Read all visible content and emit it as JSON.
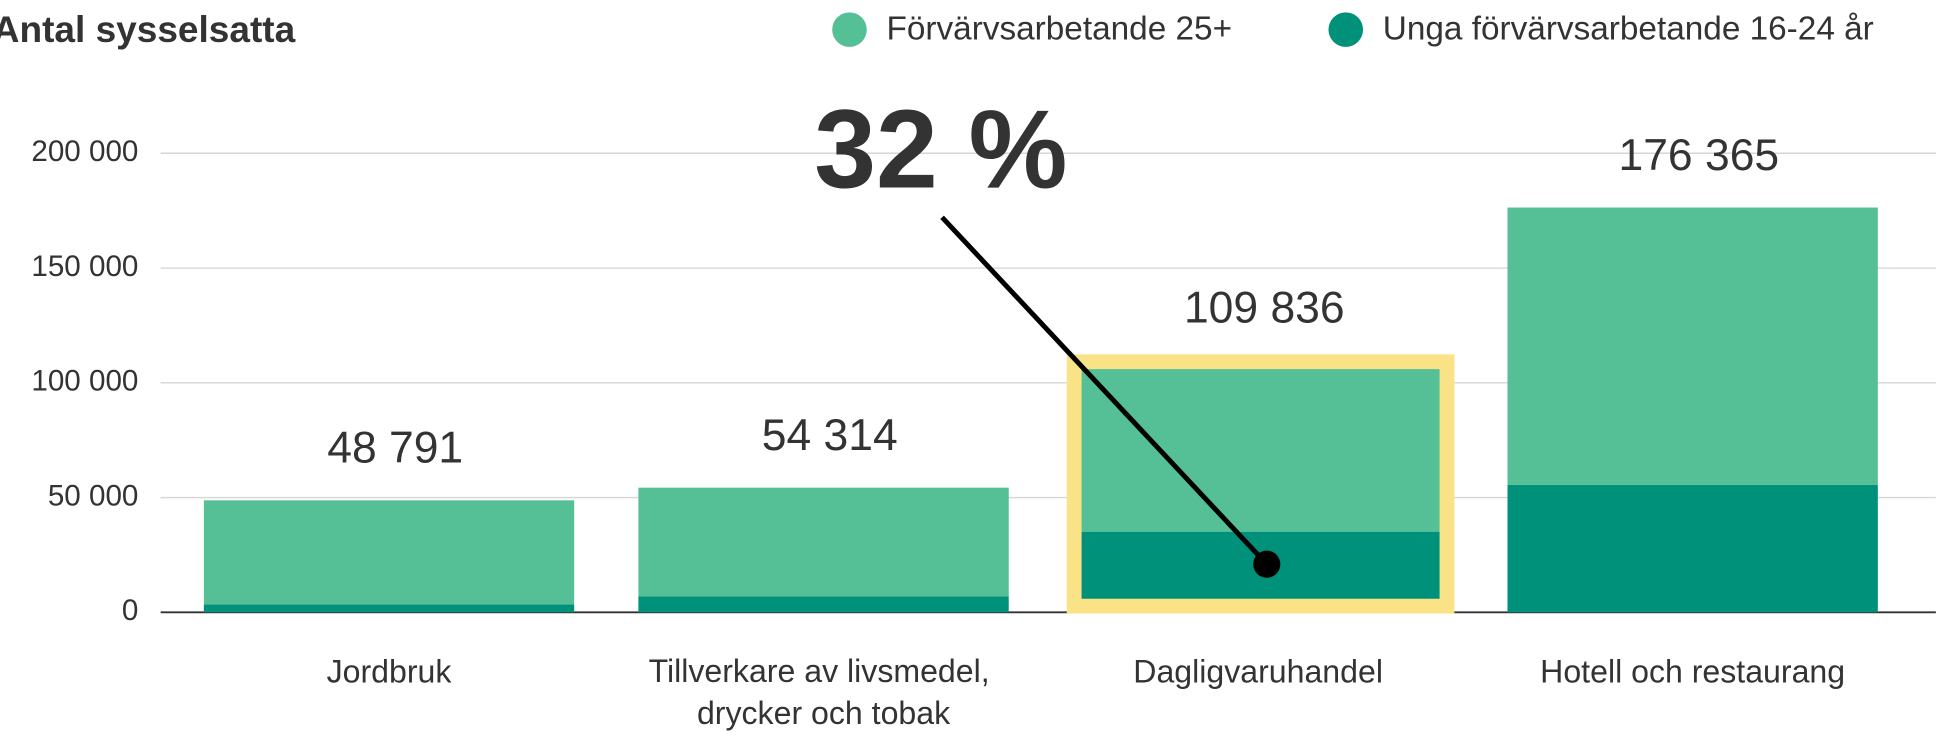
{
  "chart_data": {
    "type": "stacked_bar",
    "title": "Antal sysselsatta",
    "annotation": "32 %",
    "categories": [
      "Jordbruk",
      "Tillverkare av livsmedel, drycker och tobak",
      "Dagligvaruhandel",
      "Hotell och restaurang"
    ],
    "series": [
      {
        "name": "Förvärvsarbetande 25+",
        "color": "#55bf95",
        "values": [
          45291,
          47314,
          74688,
          120865
        ]
      },
      {
        "name": "Unga förvärvsarbetande 16-24 år",
        "color": "#00917a",
        "values": [
          3500,
          7000,
          35148,
          55500
        ]
      }
    ],
    "totals": [
      48791,
      54314,
      109836,
      176365
    ],
    "total_labels": [
      "48 791",
      "54 314",
      "109 836",
      "176 365"
    ],
    "ylim": [
      0,
      220000
    ],
    "yticks": [
      0,
      {
        "value": 50000,
        "label": "50 000"
      },
      {
        "value": 100000,
        "label": "100 000"
      },
      {
        "value": 150000,
        "label": "150 000"
      },
      {
        "value": 200000,
        "label": "200 000"
      }
    ],
    "grid": true
  }
}
